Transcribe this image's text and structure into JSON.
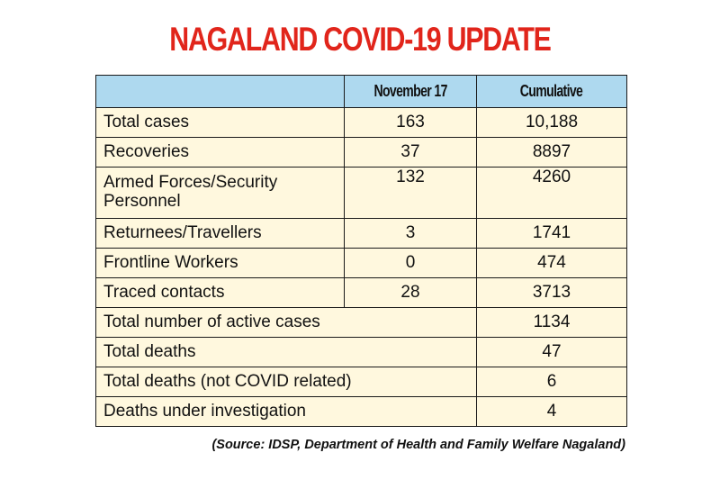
{
  "title": "NAGALAND COVID-19 UPDATE",
  "table": {
    "col_headers": [
      "",
      "November 17",
      "Cumulative"
    ],
    "rows": [
      {
        "label": "Total cases",
        "day": "163",
        "cumulative": "10,188"
      },
      {
        "label": "Recoveries",
        "day": "37",
        "cumulative": "8897"
      },
      {
        "label": "Armed Forces/Security Personnel",
        "day": "132",
        "cumulative": "4260"
      },
      {
        "label": "Returnees/Travellers",
        "day": "3",
        "cumulative": "1741"
      },
      {
        "label": "Frontline Workers",
        "day": "0",
        "cumulative": "474"
      },
      {
        "label": "Traced contacts",
        "day": "28",
        "cumulative": "3713"
      }
    ],
    "summary_rows": [
      {
        "label": "Total number of active cases",
        "value": "1134"
      },
      {
        "label": "Total deaths",
        "value": "47"
      },
      {
        "label": "Total deaths (not COVID related)",
        "value": "6"
      },
      {
        "label": "Deaths under investigation",
        "value": "4"
      }
    ]
  },
  "source": "(Source: IDSP, Department of Health and  Family Welfare Nagaland)",
  "colors": {
    "title": "#e1251b",
    "header_bg": "#aed9ef",
    "row_bg": "#fff8de"
  }
}
